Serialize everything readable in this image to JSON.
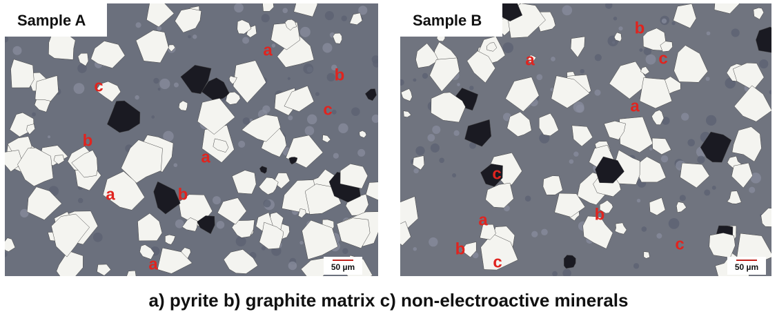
{
  "panels": [
    {
      "title": "Sample A",
      "labels": [
        "a",
        "b",
        "c",
        "c",
        "b",
        "a",
        "a",
        "b",
        "a"
      ],
      "scale": "50 µm"
    },
    {
      "title": "Sample B",
      "labels": [
        "b",
        "c",
        "a",
        "a",
        "c",
        "a",
        "b",
        "b",
        "c",
        "c"
      ],
      "scale": "50 µm"
    }
  ],
  "caption": "a) pyrite b) graphite matrix c) non-electroactive minerals"
}
